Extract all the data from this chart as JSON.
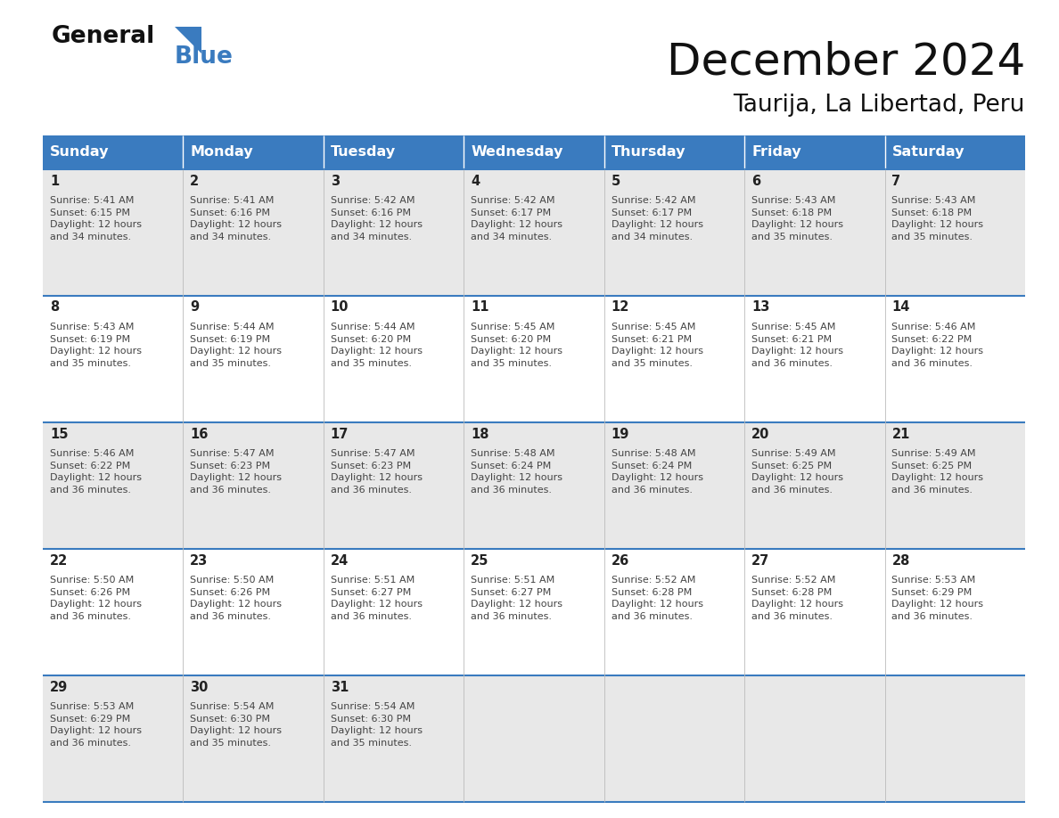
{
  "title": "December 2024",
  "subtitle": "Taurija, La Libertad, Peru",
  "days_of_week": [
    "Sunday",
    "Monday",
    "Tuesday",
    "Wednesday",
    "Thursday",
    "Friday",
    "Saturday"
  ],
  "header_bg": "#3a7bbf",
  "header_text": "#ffffff",
  "row_bg_light": "#e8e8e8",
  "row_bg_white": "#ffffff",
  "cell_border_color": "#3a7bbf",
  "cell_text_color": "#444444",
  "day_num_color": "#222222",
  "calendar": [
    [
      {
        "day": 1,
        "sunrise": "5:41 AM",
        "sunset": "6:15 PM",
        "daylight": "12 hours\nand 34 minutes."
      },
      {
        "day": 2,
        "sunrise": "5:41 AM",
        "sunset": "6:16 PM",
        "daylight": "12 hours\nand 34 minutes."
      },
      {
        "day": 3,
        "sunrise": "5:42 AM",
        "sunset": "6:16 PM",
        "daylight": "12 hours\nand 34 minutes."
      },
      {
        "day": 4,
        "sunrise": "5:42 AM",
        "sunset": "6:17 PM",
        "daylight": "12 hours\nand 34 minutes."
      },
      {
        "day": 5,
        "sunrise": "5:42 AM",
        "sunset": "6:17 PM",
        "daylight": "12 hours\nand 34 minutes."
      },
      {
        "day": 6,
        "sunrise": "5:43 AM",
        "sunset": "6:18 PM",
        "daylight": "12 hours\nand 35 minutes."
      },
      {
        "day": 7,
        "sunrise": "5:43 AM",
        "sunset": "6:18 PM",
        "daylight": "12 hours\nand 35 minutes."
      }
    ],
    [
      {
        "day": 8,
        "sunrise": "5:43 AM",
        "sunset": "6:19 PM",
        "daylight": "12 hours\nand 35 minutes."
      },
      {
        "day": 9,
        "sunrise": "5:44 AM",
        "sunset": "6:19 PM",
        "daylight": "12 hours\nand 35 minutes."
      },
      {
        "day": 10,
        "sunrise": "5:44 AM",
        "sunset": "6:20 PM",
        "daylight": "12 hours\nand 35 minutes."
      },
      {
        "day": 11,
        "sunrise": "5:45 AM",
        "sunset": "6:20 PM",
        "daylight": "12 hours\nand 35 minutes."
      },
      {
        "day": 12,
        "sunrise": "5:45 AM",
        "sunset": "6:21 PM",
        "daylight": "12 hours\nand 35 minutes."
      },
      {
        "day": 13,
        "sunrise": "5:45 AM",
        "sunset": "6:21 PM",
        "daylight": "12 hours\nand 36 minutes."
      },
      {
        "day": 14,
        "sunrise": "5:46 AM",
        "sunset": "6:22 PM",
        "daylight": "12 hours\nand 36 minutes."
      }
    ],
    [
      {
        "day": 15,
        "sunrise": "5:46 AM",
        "sunset": "6:22 PM",
        "daylight": "12 hours\nand 36 minutes."
      },
      {
        "day": 16,
        "sunrise": "5:47 AM",
        "sunset": "6:23 PM",
        "daylight": "12 hours\nand 36 minutes."
      },
      {
        "day": 17,
        "sunrise": "5:47 AM",
        "sunset": "6:23 PM",
        "daylight": "12 hours\nand 36 minutes."
      },
      {
        "day": 18,
        "sunrise": "5:48 AM",
        "sunset": "6:24 PM",
        "daylight": "12 hours\nand 36 minutes."
      },
      {
        "day": 19,
        "sunrise": "5:48 AM",
        "sunset": "6:24 PM",
        "daylight": "12 hours\nand 36 minutes."
      },
      {
        "day": 20,
        "sunrise": "5:49 AM",
        "sunset": "6:25 PM",
        "daylight": "12 hours\nand 36 minutes."
      },
      {
        "day": 21,
        "sunrise": "5:49 AM",
        "sunset": "6:25 PM",
        "daylight": "12 hours\nand 36 minutes."
      }
    ],
    [
      {
        "day": 22,
        "sunrise": "5:50 AM",
        "sunset": "6:26 PM",
        "daylight": "12 hours\nand 36 minutes."
      },
      {
        "day": 23,
        "sunrise": "5:50 AM",
        "sunset": "6:26 PM",
        "daylight": "12 hours\nand 36 minutes."
      },
      {
        "day": 24,
        "sunrise": "5:51 AM",
        "sunset": "6:27 PM",
        "daylight": "12 hours\nand 36 minutes."
      },
      {
        "day": 25,
        "sunrise": "5:51 AM",
        "sunset": "6:27 PM",
        "daylight": "12 hours\nand 36 minutes."
      },
      {
        "day": 26,
        "sunrise": "5:52 AM",
        "sunset": "6:28 PM",
        "daylight": "12 hours\nand 36 minutes."
      },
      {
        "day": 27,
        "sunrise": "5:52 AM",
        "sunset": "6:28 PM",
        "daylight": "12 hours\nand 36 minutes."
      },
      {
        "day": 28,
        "sunrise": "5:53 AM",
        "sunset": "6:29 PM",
        "daylight": "12 hours\nand 36 minutes."
      }
    ],
    [
      {
        "day": 29,
        "sunrise": "5:53 AM",
        "sunset": "6:29 PM",
        "daylight": "12 hours\nand 36 minutes."
      },
      {
        "day": 30,
        "sunrise": "5:54 AM",
        "sunset": "6:30 PM",
        "daylight": "12 hours\nand 35 minutes."
      },
      {
        "day": 31,
        "sunrise": "5:54 AM",
        "sunset": "6:30 PM",
        "daylight": "12 hours\nand 35 minutes."
      },
      null,
      null,
      null,
      null
    ]
  ],
  "logo_general_color": "#111111",
  "logo_blue_color": "#3a7bbf",
  "logo_triangle_color": "#3a7bbf",
  "title_fontsize": 36,
  "subtitle_fontsize": 19,
  "header_fontsize": 11.5,
  "day_num_fontsize": 10.5,
  "cell_fontsize": 8.0
}
